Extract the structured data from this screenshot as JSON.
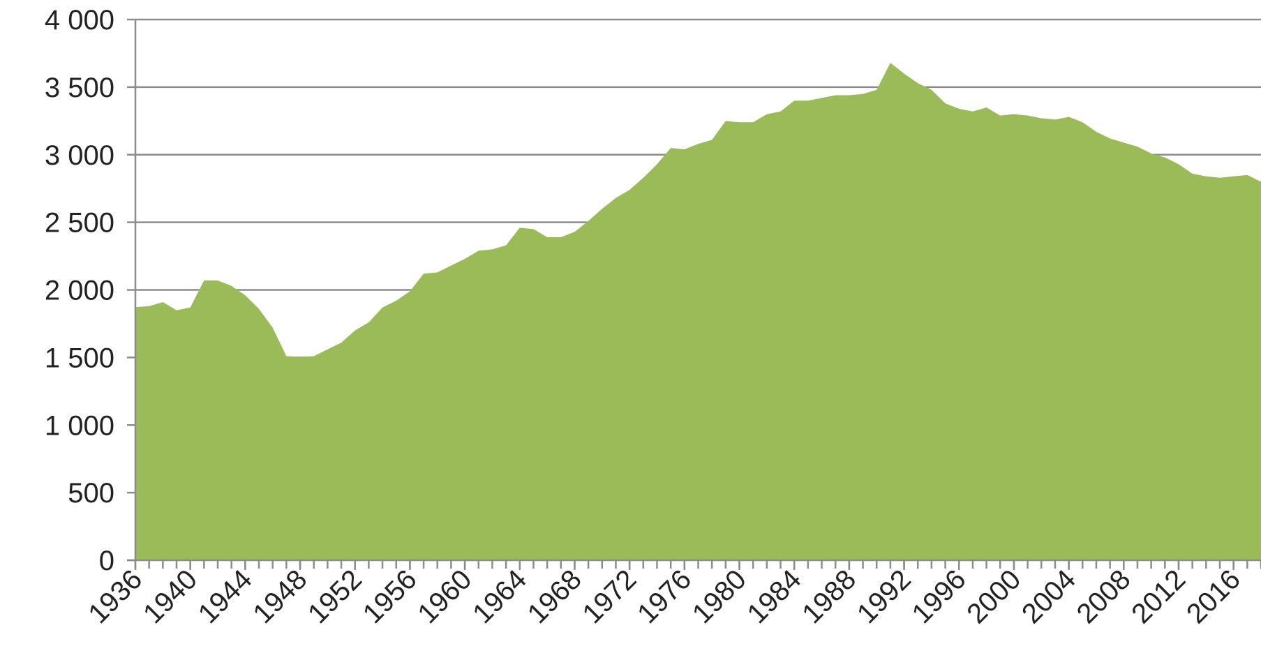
{
  "chart_data": {
    "type": "area",
    "color": "#9bbb59",
    "grid": true,
    "x": [
      1936,
      1937,
      1938,
      1939,
      1940,
      1941,
      1942,
      1943,
      1944,
      1945,
      1946,
      1947,
      1948,
      1949,
      1950,
      1951,
      1952,
      1953,
      1954,
      1955,
      1956,
      1957,
      1958,
      1959,
      1960,
      1961,
      1962,
      1963,
      1964,
      1965,
      1966,
      1967,
      1968,
      1969,
      1970,
      1971,
      1972,
      1973,
      1974,
      1975,
      1976,
      1977,
      1978,
      1979,
      1980,
      1981,
      1982,
      1983,
      1984,
      1985,
      1986,
      1987,
      1988,
      1989,
      1990,
      1991,
      1992,
      1993,
      1994,
      1995,
      1996,
      1997,
      1998,
      1999,
      2000,
      2001,
      2002,
      2003,
      2004,
      2005,
      2006,
      2007,
      2008,
      2009,
      2010,
      2011,
      2012,
      2013,
      2014,
      2015,
      2016,
      2017,
      2018
    ],
    "values": [
      1872,
      1880,
      1910,
      1850,
      1870,
      2070,
      2070,
      2030,
      1960,
      1860,
      1720,
      1510,
      1505,
      1510,
      1560,
      1610,
      1700,
      1760,
      1870,
      1920,
      1990,
      2120,
      2130,
      2180,
      2230,
      2290,
      2300,
      2330,
      2460,
      2450,
      2390,
      2390,
      2430,
      2510,
      2600,
      2680,
      2740,
      2830,
      2930,
      3050,
      3040,
      3080,
      3110,
      3250,
      3240,
      3240,
      3300,
      3320,
      3400,
      3400,
      3420,
      3440,
      3440,
      3450,
      3480,
      3680,
      3600,
      3530,
      3480,
      3380,
      3340,
      3320,
      3350,
      3290,
      3300,
      3290,
      3270,
      3260,
      3280,
      3240,
      3170,
      3120,
      3090,
      3060,
      3010,
      2980,
      2930,
      2860,
      2840,
      2830,
      2840,
      2850,
      2800
    ],
    "xlim": [
      1936,
      2018
    ],
    "xticks": [
      1936,
      1940,
      1944,
      1948,
      1952,
      1956,
      1960,
      1964,
      1968,
      1972,
      1976,
      1980,
      1984,
      1988,
      1992,
      1996,
      2000,
      2004,
      2008,
      2012,
      2016
    ],
    "ylim": [
      0,
      4000
    ],
    "yticks": [
      0,
      500,
      {
        "value": 1000,
        "label": "1 000"
      },
      {
        "value": 1500,
        "label": "1 500"
      },
      {
        "value": 2000,
        "label": "2 000"
      },
      {
        "value": 2500,
        "label": "2 500"
      },
      {
        "value": 3000,
        "label": "3 000"
      },
      {
        "value": 3500,
        "label": "3 500"
      },
      {
        "value": 4000,
        "label": "4 000"
      }
    ]
  }
}
